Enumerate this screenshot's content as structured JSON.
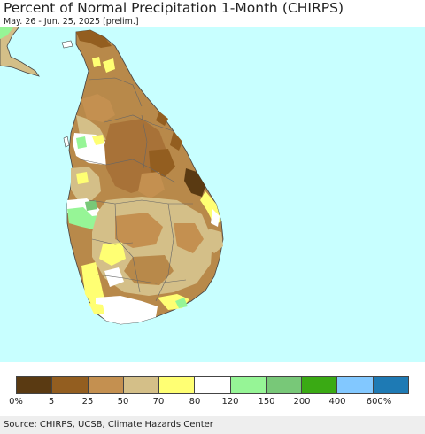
{
  "header": {
    "title": "Percent of Normal Precipitation 1-Month (CHIRPS)",
    "subtitle": "May. 26 - Jun. 25, 2025 [prelim.]"
  },
  "legend": {
    "colors": [
      "#5a3a12",
      "#935e20",
      "#c49050",
      "#d4bf88",
      "#ffff73",
      "#ffffff",
      "#96f596",
      "#78c878",
      "#3aaa14",
      "#82c8ff",
      "#1e7ab4"
    ],
    "tick_labels": [
      "0%",
      "5",
      "25",
      "50",
      "70",
      "80",
      "120",
      "150",
      "200",
      "400",
      "600%"
    ]
  },
  "map_colors": {
    "ocean": "#c8ffff",
    "land_base": "#b8894a",
    "border": "#444444"
  },
  "footer": {
    "source": "Source: CHIRPS, UCSB, Climate Hazards Center"
  }
}
